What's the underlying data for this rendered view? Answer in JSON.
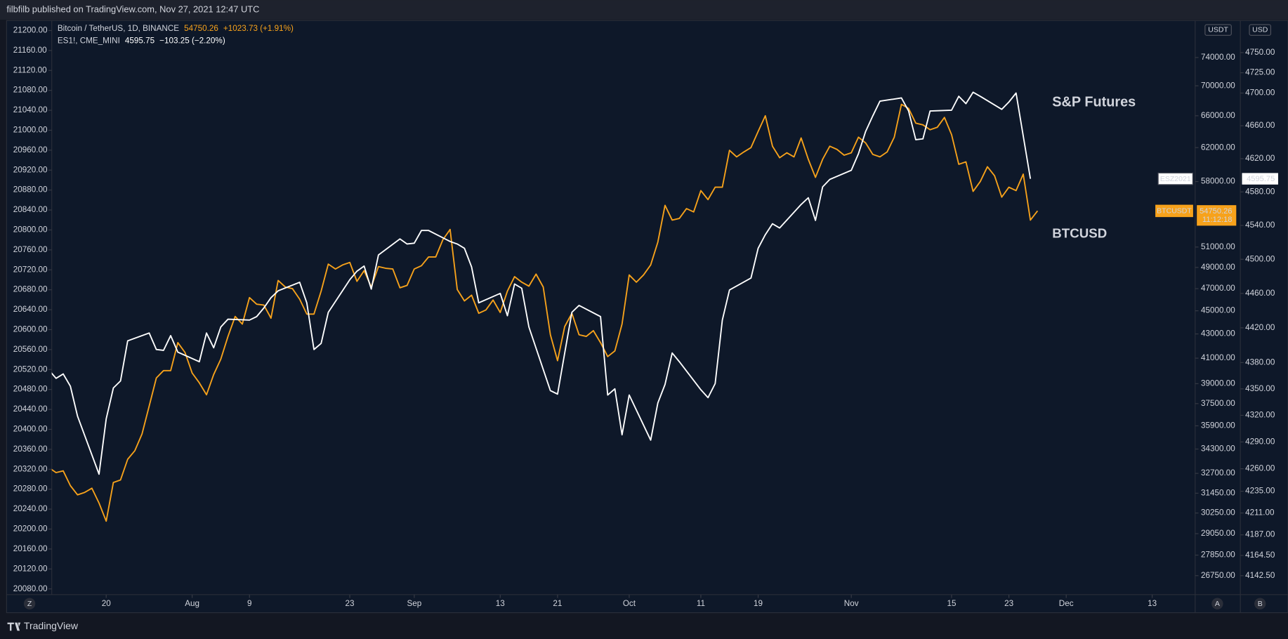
{
  "page": {
    "byline": "filbfilb published on TradingView.com, Nov 27, 2021 12:47 UTC",
    "brand": "TradingView",
    "buttons": [
      "Z",
      "A",
      "B"
    ]
  },
  "chart_data": {
    "type": "line",
    "annotations": [
      "S&P Futures",
      "BTCUSD"
    ],
    "grid": false,
    "xlim": [
      -7.6,
      152
    ],
    "xticks": [
      {
        "value": 0,
        "label": "20"
      },
      {
        "value": 12,
        "label": "Aug"
      },
      {
        "value": 20,
        "label": "9"
      },
      {
        "value": 34,
        "label": "23"
      },
      {
        "value": 43,
        "label": "Sep"
      },
      {
        "value": 55,
        "label": "13"
      },
      {
        "value": 63,
        "label": "21"
      },
      {
        "value": 73,
        "label": "Oct"
      },
      {
        "value": 83,
        "label": "11"
      },
      {
        "value": 91,
        "label": "19"
      },
      {
        "value": 104,
        "label": "Nov"
      },
      {
        "value": 118,
        "label": "15"
      },
      {
        "value": 126,
        "label": "23"
      },
      {
        "value": 134,
        "label": "Dec"
      },
      {
        "value": 146,
        "label": "13"
      }
    ],
    "ylim": [
      20068.5,
      21220
    ],
    "yticks": [
      {
        "value": 20080,
        "label": "20080.00"
      },
      {
        "value": 20120,
        "label": "20120.00"
      },
      {
        "value": 20160,
        "label": "20160.00"
      },
      {
        "value": 20200,
        "label": "20200.00"
      },
      {
        "value": 20240,
        "label": "20240.00"
      },
      {
        "value": 20280,
        "label": "20280.00"
      },
      {
        "value": 20320,
        "label": "20320.00"
      },
      {
        "value": 20360,
        "label": "20360.00"
      },
      {
        "value": 20400,
        "label": "20400.00"
      },
      {
        "value": 20440,
        "label": "20440.00"
      },
      {
        "value": 20480,
        "label": "20480.00"
      },
      {
        "value": 20520,
        "label": "20520.00"
      },
      {
        "value": 20560,
        "label": "20560.00"
      },
      {
        "value": 20600,
        "label": "20600.00"
      },
      {
        "value": 20640,
        "label": "20640.00"
      },
      {
        "value": 20680,
        "label": "20680.00"
      },
      {
        "value": 20720,
        "label": "20720.00"
      },
      {
        "value": 20760,
        "label": "20760.00"
      },
      {
        "value": 20800,
        "label": "20800.00"
      },
      {
        "value": 20840,
        "label": "20840.00"
      },
      {
        "value": 20880,
        "label": "20880.00"
      },
      {
        "value": 20920,
        "label": "20920.00"
      },
      {
        "value": 20960,
        "label": "20960.00"
      },
      {
        "value": 21000,
        "label": "21000.00"
      },
      {
        "value": 21040,
        "label": "21040.00"
      },
      {
        "value": 21080,
        "label": "21080.00"
      },
      {
        "value": 21120,
        "label": "21120.00"
      },
      {
        "value": 21160,
        "label": "21160.00"
      },
      {
        "value": 21200,
        "label": "21200.00"
      }
    ],
    "y2unit": "USDT",
    "y2scale": "log",
    "y2lim": [
      25770,
      79570
    ],
    "y2ticks": [
      {
        "value": 74000,
        "label": "74000.00"
      },
      {
        "value": 70000,
        "label": "70000.00"
      },
      {
        "value": 66000,
        "label": "66000.00"
      },
      {
        "value": 62000,
        "label": "62000.00"
      },
      {
        "value": 58000,
        "label": "58000.00"
      },
      {
        "value": 51000,
        "label": "51000.00"
      },
      {
        "value": 49000,
        "label": "49000.00"
      },
      {
        "value": 47000,
        "label": "47000.00"
      },
      {
        "value": 45000,
        "label": "45000.00"
      },
      {
        "value": 43000,
        "label": "43000.00"
      },
      {
        "value": 41000,
        "label": "41000.00"
      },
      {
        "value": 39000,
        "label": "39000.00"
      },
      {
        "value": 37500,
        "label": "37500.00"
      },
      {
        "value": 35900,
        "label": "35900.00"
      },
      {
        "value": 34300,
        "label": "34300.00"
      },
      {
        "value": 32700,
        "label": "32700.00"
      },
      {
        "value": 31450,
        "label": "31450.00"
      },
      {
        "value": 30250,
        "label": "30250.00"
      },
      {
        "value": 29050,
        "label": "29050.00"
      },
      {
        "value": 27850,
        "label": "27850.00"
      },
      {
        "value": 26750,
        "label": "26750.00"
      }
    ],
    "y3unit": "USD",
    "y3scale": "log",
    "y3lim": [
      4122,
      4790
    ],
    "y3ticks": [
      {
        "value": 4750,
        "label": "4750.00"
      },
      {
        "value": 4725,
        "label": "4725.00"
      },
      {
        "value": 4700,
        "label": "4700.00"
      },
      {
        "value": 4660,
        "label": "4660.00"
      },
      {
        "value": 4620,
        "label": "4620.00"
      },
      {
        "value": 4580,
        "label": "4580.00"
      },
      {
        "value": 4540,
        "label": "4540.00"
      },
      {
        "value": 4500,
        "label": "4500.00"
      },
      {
        "value": 4460,
        "label": "4460.00"
      },
      {
        "value": 4420,
        "label": "4420.00"
      },
      {
        "value": 4380,
        "label": "4380.00"
      },
      {
        "value": 4350,
        "label": "4350.00"
      },
      {
        "value": 4320,
        "label": "4320.00"
      },
      {
        "value": 4290,
        "label": "4290.00"
      },
      {
        "value": 4260,
        "label": "4260.00"
      },
      {
        "value": 4235,
        "label": "4235.00"
      },
      {
        "value": 4211,
        "label": "4211.00"
      },
      {
        "value": 4187,
        "label": "4187.00"
      },
      {
        "value": 4164.5,
        "label": "4164.50"
      },
      {
        "value": 4142.5,
        "label": "4142.50"
      }
    ],
    "series": [
      {
        "name": "Bitcoin / TetherUS, 1D, BINANCE",
        "tag": "BTCUSDT",
        "change": "+1023.73 (+1.91%)",
        "countdown": "11:12:18",
        "color": "#f7a21b",
        "axis": "y2",
        "x": [
          -8,
          -7,
          -6,
          -5,
          -4,
          -3,
          -2,
          -1,
          0,
          1,
          2,
          3,
          4,
          5,
          6,
          7,
          8,
          9,
          10,
          11,
          12,
          13,
          14,
          15,
          16,
          17,
          18,
          19,
          20,
          21,
          22,
          23,
          24,
          25,
          26,
          27,
          28,
          29,
          30,
          31,
          32,
          33,
          34,
          35,
          36,
          37,
          38,
          39,
          40,
          41,
          42,
          43,
          44,
          45,
          46,
          47,
          48,
          49,
          50,
          51,
          52,
          53,
          54,
          55,
          56,
          57,
          58,
          59,
          60,
          61,
          62,
          63,
          64,
          65,
          66,
          67,
          68,
          69,
          70,
          71,
          72,
          73,
          74,
          75,
          76,
          77,
          78,
          79,
          80,
          81,
          82,
          83,
          84,
          85,
          86,
          87,
          88,
          89,
          90,
          91,
          92,
          93,
          94,
          95,
          96,
          97,
          98,
          99,
          100,
          101,
          102,
          103,
          104,
          105,
          106,
          107,
          108,
          109,
          110,
          111,
          112,
          113,
          114,
          115,
          116,
          117,
          118,
          119,
          120,
          121,
          122,
          123,
          124,
          125,
          126,
          127,
          128,
          129,
          130
        ],
        "values": [
          33070,
          32750,
          32860,
          31920,
          31350,
          31500,
          31760,
          30850,
          29770,
          32120,
          32280,
          33620,
          34190,
          35330,
          37320,
          39440,
          40010,
          40010,
          42270,
          41460,
          39820,
          39060,
          38160,
          39700,
          40930,
          42790,
          44500,
          43840,
          46180,
          45590,
          45510,
          44350,
          47760,
          47150,
          47000,
          46040,
          44710,
          44710,
          46770,
          49320,
          48850,
          49240,
          49480,
          47680,
          48690,
          47150,
          49080,
          48920,
          48850,
          47080,
          47300,
          48850,
          49160,
          50020,
          50020,
          51750,
          52790,
          46920,
          45880,
          46400,
          44780,
          45070,
          45960,
          44850,
          46770,
          48120,
          47600,
          47230,
          48360,
          47150,
          42930,
          40800,
          43630,
          44780,
          42930,
          42790,
          43280,
          42270,
          41130,
          41590,
          43840,
          48280,
          47600,
          48280,
          49240,
          51500,
          55350,
          53770,
          53950,
          55000,
          54640,
          56980,
          55980,
          57360,
          57360,
          61670,
          60880,
          61470,
          62000,
          64000,
          66000,
          62170,
          60780,
          61370,
          60880,
          63180,
          60590,
          58480,
          60590,
          62170,
          61780,
          61080,
          61370,
          63280,
          62570,
          61180,
          60880,
          61470,
          63280,
          67500,
          66960,
          65050,
          64830,
          64210,
          64520,
          65780,
          63590,
          60000,
          60290,
          56890,
          58000,
          59710,
          58660,
          56250,
          57360,
          56980,
          58850,
          53770,
          54750.26
        ]
      },
      {
        "name": "ES1!, CME_MINI",
        "tag": "ESZ2021",
        "change": "−103.25 (−2.20%)",
        "color": "#ffffff",
        "axis": "y3",
        "x": [
          -8,
          -7,
          -6,
          -5,
          -4,
          -1,
          0,
          1,
          2,
          3,
          6,
          7,
          8,
          9,
          10,
          13,
          14,
          15,
          16,
          17,
          20,
          21,
          22,
          23,
          24,
          27,
          28,
          29,
          30,
          31,
          34,
          35,
          36,
          37,
          38,
          41,
          42,
          43,
          44,
          45,
          48,
          49,
          50,
          51,
          52,
          55,
          56,
          57,
          58,
          59,
          62,
          63,
          64,
          65,
          66,
          69,
          70,
          71,
          72,
          73,
          76,
          77,
          78,
          79,
          80,
          83,
          84,
          85,
          86,
          87,
          90,
          91,
          92,
          93,
          94,
          97,
          98,
          99,
          100,
          101,
          104,
          105,
          106,
          107,
          108,
          111,
          112,
          113,
          114,
          115,
          118,
          119,
          120,
          121,
          122,
          125,
          126,
          127,
          129
        ],
        "values": [
          4371.5,
          4362,
          4367,
          4353,
          4319,
          4254,
          4316,
          4351,
          4359,
          4405,
          4414,
          4395,
          4394,
          4411,
          4392,
          4381,
          4414,
          4397,
          4421,
          4430,
          4429,
          4433,
          4443,
          4455,
          4463,
          4473,
          4449,
          4395,
          4402,
          4438,
          4476,
          4486,
          4492,
          4465,
          4505,
          4524,
          4518,
          4519,
          4534,
          4534,
          4521,
          4518,
          4513,
          4491,
          4449,
          4460,
          4434,
          4471,
          4466,
          4421,
          4348,
          4344,
          4391,
          4438,
          4446,
          4433,
          4343,
          4350,
          4298,
          4343,
          4292,
          4334,
          4355,
          4391,
          4381,
          4349,
          4340,
          4356,
          4429,
          4464,
          4478,
          4513,
          4529,
          4542,
          4537,
          4565,
          4573,
          4546,
          4586,
          4595,
          4606,
          4626,
          4653,
          4672,
          4690,
          4694,
          4678,
          4643,
          4644,
          4678,
          4679,
          4696,
          4687,
          4701,
          4696,
          4680,
          4689,
          4700,
          4595.75
        ]
      }
    ]
  }
}
